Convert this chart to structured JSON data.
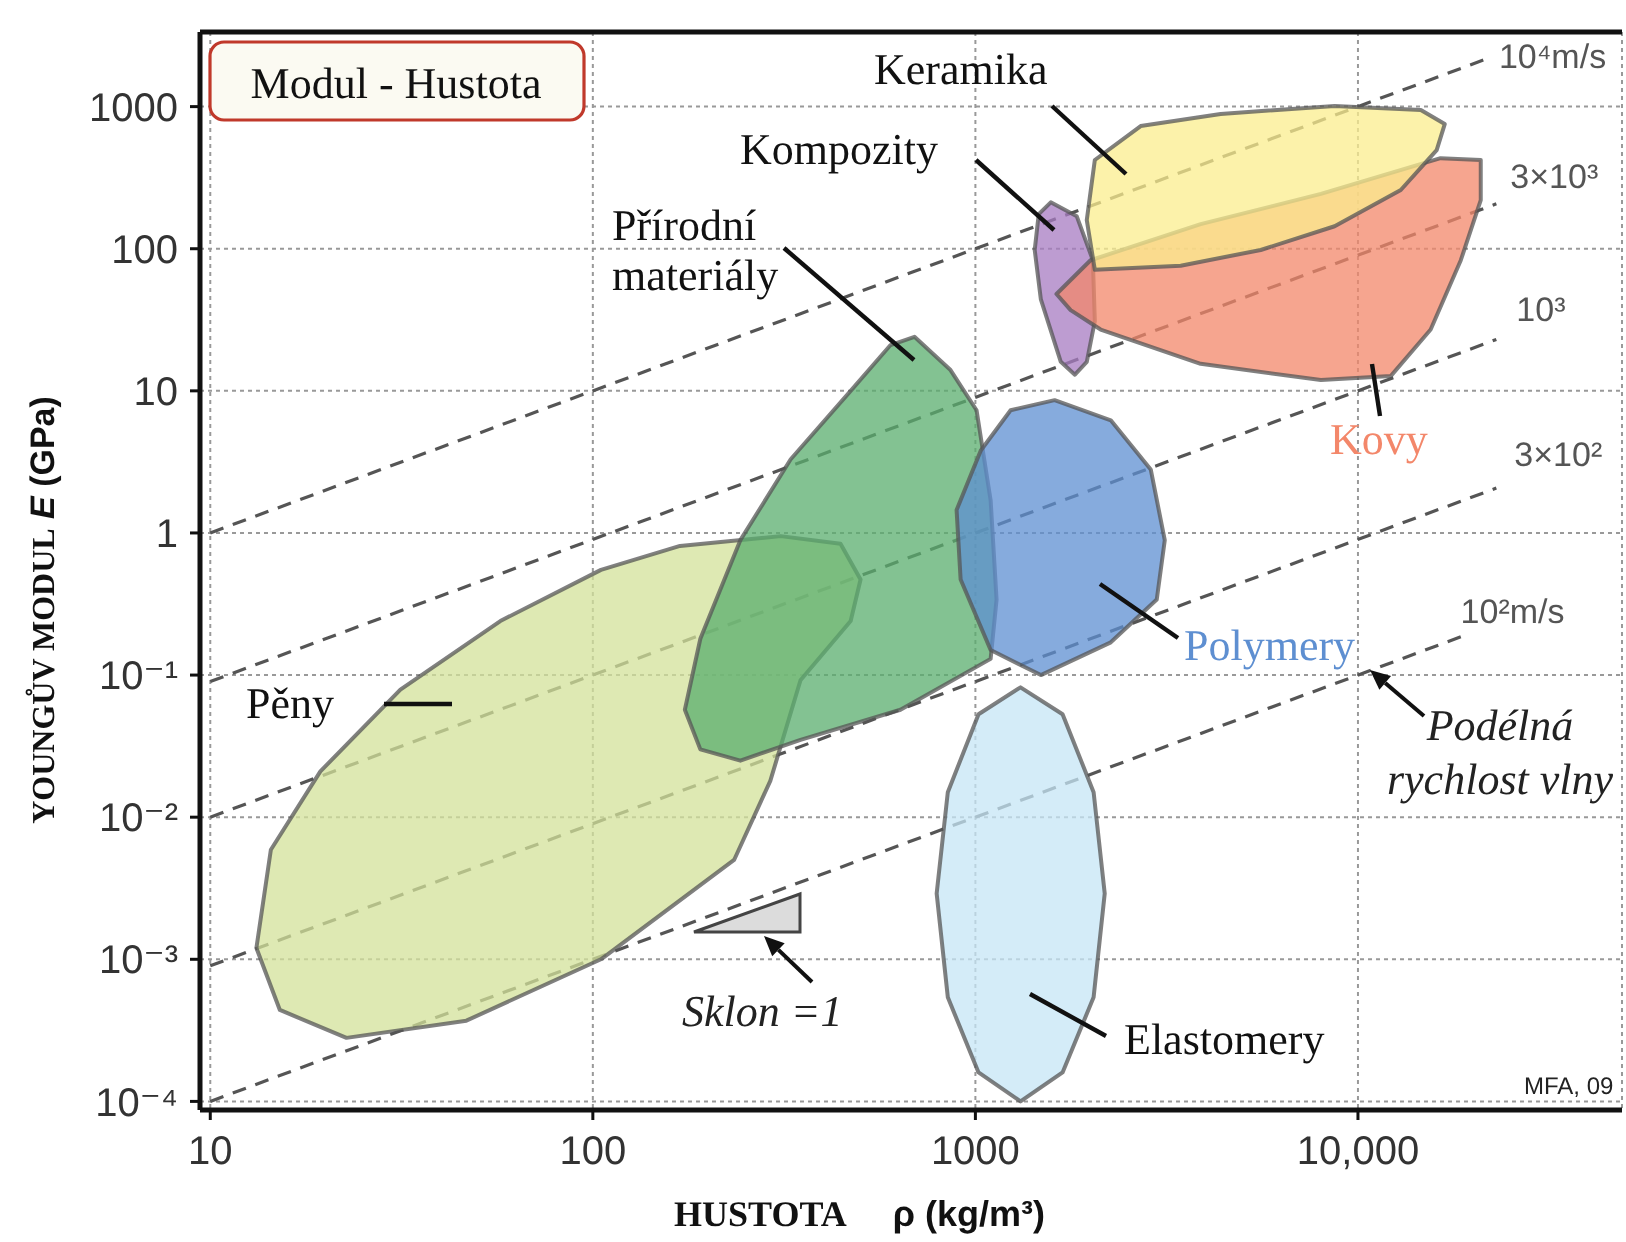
{
  "chart_data": {
    "type": "area",
    "title": "Modul - Hustota",
    "xlabel": "HUSTOTA ρ (kg/m³)",
    "ylabel": "YOUNGŮV MODUL E (GPa)",
    "annotations": [
      "Sklon =1",
      "Podélná rychlost vlny",
      "MFA, 09"
    ],
    "log": "xy",
    "grid": true,
    "line_style": "dashed",
    "marker": "none",
    "xlim": [
      9.4,
      49000
    ],
    "ylim": [
      8.7e-05,
      3350
    ],
    "xticks": [
      10,
      100,
      1000,
      {
        "value": 10000,
        "label": "10,000"
      }
    ],
    "yticks": [
      {
        "value": 0.0001,
        "label": "10⁻⁴"
      },
      {
        "value": 0.001,
        "label": "10⁻³"
      },
      {
        "value": 0.01,
        "label": "10⁻²"
      },
      {
        "value": 0.1,
        "label": "10⁻¹"
      },
      1,
      10,
      100,
      1000
    ],
    "series": [
      {
        "name": "Pěny",
        "color": "#d3e29a",
        "x": [
          13.2,
          14.4,
          19.4,
          31.4,
          57.3,
          105,
          169,
          310,
          444,
          501,
          472,
          349,
          291,
          234,
          105,
          46.7,
          22.7,
          15.2
        ],
        "values": [
          0.0012,
          0.0059,
          0.021,
          0.079,
          0.24,
          0.55,
          0.81,
          0.95,
          0.84,
          0.47,
          0.24,
          0.092,
          0.018,
          0.005,
          0.001,
          0.00037,
          0.00028,
          0.00044
        ]
      },
      {
        "name": "Přírodní materiály",
        "color": "#5aad6e",
        "x": [
          693,
          861,
          1007,
          1096,
          1136,
          1096,
          637,
          349,
          243,
          191,
          174,
          191,
          243,
          329,
          472,
          600
        ],
        "values": [
          24,
          14,
          7.3,
          1.7,
          0.34,
          0.13,
          0.057,
          0.035,
          0.025,
          0.03,
          0.057,
          0.18,
          0.89,
          3.3,
          10,
          21
        ]
      },
      {
        "name": "Polymery",
        "color": "#5e8fd1",
        "x": [
          1611,
          2259,
          2873,
          3126,
          2979,
          2259,
          1483,
          1096,
          915,
          893,
          1033,
          1236
        ],
        "values": [
          8.6,
          6.2,
          2.8,
          0.89,
          0.34,
          0.17,
          0.1,
          0.15,
          0.47,
          1.45,
          3.8,
          7.3
        ]
      },
      {
        "name": "Elastomery",
        "color": "#c6e6f6",
        "x": [
          2178,
          2037,
          1690,
          1312,
          1019,
          847,
          792,
          847,
          1019,
          1312,
          1690,
          2037
        ],
        "values": [
          0.0029,
          0.015,
          0.053,
          0.082,
          0.053,
          0.015,
          0.0029,
          0.00054,
          0.00016,
          0.0001,
          0.00016,
          0.00054
        ]
      },
      {
        "name": "Kompozity",
        "color": "#a77bc2",
        "x": [
          1574,
          1841,
          2028,
          2052,
          1955,
          1820,
          1672,
          1483,
          1429,
          1464
        ],
        "values": [
          212,
          169,
          83,
          31,
          16,
          13,
          16,
          44,
          98,
          175
        ]
      },
      {
        "name": "Kovy",
        "color": "#f3876a",
        "x": [
          1629,
          2000,
          3880,
          8000,
          16440,
          20940,
          20940,
          18570,
          15490,
          12180,
          8000,
          3880,
          2125,
          1774
        ],
        "values": [
          48,
          83,
          149,
          243,
          434,
          421,
          220,
          83,
          27,
          12.7,
          11.9,
          15.5,
          27,
          37
        ]
      },
      {
        "name": "Keramika",
        "color": "#fbee8e",
        "x": [
          2052,
          2704,
          4375,
          8690,
          14600,
          16860,
          16060,
          12940,
          8690,
          5570,
          3440,
          2052,
          1955
        ],
        "values": [
          421,
          730,
          888,
          1010,
          946,
          754,
          494,
          259,
          144,
          98,
          76,
          71,
          159
        ]
      },
      {
        "name": "10⁴m/s",
        "type": "line",
        "color": "#555555",
        "x": [
          10,
          22000
        ],
        "values": [
          1,
          2200
        ]
      },
      {
        "name": "3×10³",
        "type": "line",
        "color": "#555555",
        "x": [
          10,
          23000
        ],
        "values": [
          0.09,
          207
        ]
      },
      {
        "name": "10³",
        "type": "line",
        "color": "#555555",
        "x": [
          10,
          23000
        ],
        "values": [
          0.01,
          23
        ]
      },
      {
        "name": "3×10²",
        "type": "line",
        "color": "#555555",
        "x": [
          10,
          23000
        ],
        "values": [
          0.0009,
          2.07
        ]
      },
      {
        "name": "10²m/s",
        "type": "line",
        "color": "#555555",
        "x": [
          10,
          19000
        ],
        "values": [
          0.0001,
          0.19
        ]
      }
    ]
  }
}
